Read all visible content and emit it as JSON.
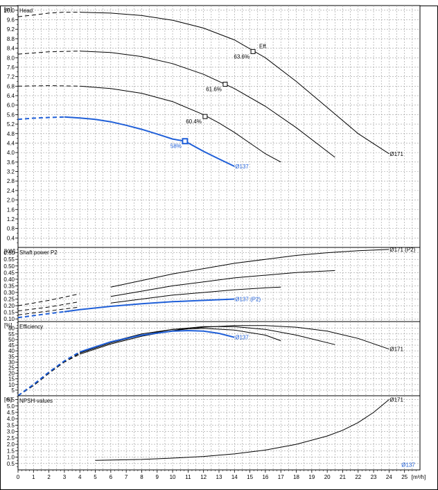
{
  "header": {
    "warning_text": ""
  },
  "chart_data": {
    "type": "line",
    "x_axis": {
      "min": 0,
      "max": 26,
      "ticks": [
        0,
        1,
        2,
        3,
        4,
        5,
        6,
        7,
        8,
        9,
        10,
        11,
        12,
        13,
        14,
        15,
        16,
        17,
        18,
        19,
        20,
        21,
        22,
        23,
        24,
        25
      ],
      "unit": "[m³/h]"
    },
    "accent_color": "#1f5fd8",
    "line_color": "#000000",
    "grid": true,
    "panels": [
      {
        "id": "head",
        "title": "Head",
        "unit": "[m]",
        "ylim": [
          0,
          10.2
        ],
        "yticks": [
          0.4,
          0.8,
          1.2,
          1.6,
          2.0,
          2.4,
          2.8,
          3.2,
          3.6,
          4.0,
          4.4,
          4.8,
          5.2,
          5.6,
          6.0,
          6.4,
          6.8,
          7.2,
          7.6,
          8.0,
          8.4,
          8.8,
          9.2,
          9.6,
          10.0
        ],
        "tick_decimals": 1,
        "series": [
          {
            "name": "Ø171",
            "color": "#000000",
            "dash_until_x": 4.0,
            "label_at": "end",
            "points": [
              [
                0,
                9.73
              ],
              [
                1,
                9.8
              ],
              [
                2,
                9.88
              ],
              [
                3,
                9.92
              ],
              [
                4,
                9.92
              ],
              [
                6,
                9.88
              ],
              [
                8,
                9.78
              ],
              [
                10,
                9.58
              ],
              [
                12,
                9.25
              ],
              [
                14,
                8.75
              ],
              [
                16,
                8.0
              ],
              [
                18,
                7.0
              ],
              [
                20,
                5.9
              ],
              [
                22,
                4.8
              ],
              [
                24,
                3.95
              ]
            ]
          },
          {
            "name": "",
            "color": "#000000",
            "dash_until_x": 4.0,
            "points": [
              [
                0,
                8.15
              ],
              [
                2,
                8.25
              ],
              [
                4,
                8.28
              ],
              [
                6,
                8.22
              ],
              [
                8,
                8.05
              ],
              [
                10,
                7.75
              ],
              [
                12,
                7.3
              ],
              [
                14,
                6.7
              ],
              [
                16,
                5.95
              ],
              [
                18,
                5.05
              ],
              [
                20.5,
                3.8
              ]
            ]
          },
          {
            "name": "",
            "color": "#000000",
            "dash_until_x": 4.0,
            "points": [
              [
                0,
                6.8
              ],
              [
                2,
                6.82
              ],
              [
                4,
                6.8
              ],
              [
                6,
                6.7
              ],
              [
                8,
                6.5
              ],
              [
                10,
                6.15
              ],
              [
                12,
                5.6
              ],
              [
                13,
                5.25
              ],
              [
                14,
                4.85
              ],
              [
                15,
                4.4
              ],
              [
                16,
                3.95
              ],
              [
                17,
                3.6
              ]
            ]
          },
          {
            "name": "Ø137",
            "color": "#1f5fd8",
            "dash_until_x": 3.0,
            "label_at": "end",
            "points": [
              [
                0,
                5.4
              ],
              [
                1,
                5.45
              ],
              [
                2,
                5.48
              ],
              [
                3,
                5.5
              ],
              [
                4,
                5.46
              ],
              [
                5,
                5.4
              ],
              [
                6,
                5.3
              ],
              [
                7,
                5.15
              ],
              [
                8,
                4.98
              ],
              [
                9,
                4.78
              ],
              [
                10,
                4.57
              ],
              [
                10.8,
                4.48
              ],
              [
                12,
                4.05
              ],
              [
                13,
                3.73
              ],
              [
                14,
                3.42
              ]
            ]
          }
        ],
        "markers": [
          {
            "x": 15.2,
            "y": 8.26,
            "label": "63.6%",
            "label_pos": "below-left",
            "color": "#000000"
          },
          {
            "x": 13.4,
            "y": 6.88,
            "label": "61.6%",
            "label_pos": "below-left",
            "color": "#000000"
          },
          {
            "x": 12.1,
            "y": 5.52,
            "label": "60.4%",
            "label_pos": "below-left",
            "color": "#000000"
          },
          {
            "x": 10.8,
            "y": 4.48,
            "label": "58%",
            "label_pos": "below-left",
            "color": "#1f5fd8"
          }
        ],
        "annotations": [
          {
            "text": "Eff.",
            "x": 15.6,
            "y": 8.4,
            "color": "#000000"
          }
        ]
      },
      {
        "id": "power",
        "title": "Shaft power P2",
        "unit": "[kW]",
        "ylim": [
          0.08,
          0.64
        ],
        "yticks": [
          0.1,
          0.15,
          0.2,
          0.25,
          0.3,
          0.35,
          0.4,
          0.45,
          0.5,
          0.55,
          0.6
        ],
        "tick_decimals": 2,
        "series": [
          {
            "name": "Ø171 (P2)",
            "color": "#000000",
            "dash_until_x": 5.0,
            "label_at": "end",
            "points": [
              [
                0,
                0.2
              ],
              [
                2,
                0.24
              ],
              [
                4,
                0.29
              ],
              [
                6,
                0.34
              ],
              [
                8,
                0.39
              ],
              [
                10,
                0.44
              ],
              [
                12,
                0.48
              ],
              [
                14,
                0.52
              ],
              [
                16,
                0.55
              ],
              [
                18,
                0.58
              ],
              [
                20,
                0.6
              ],
              [
                22,
                0.615
              ],
              [
                24,
                0.625
              ]
            ]
          },
          {
            "name": "",
            "color": "#000000",
            "dash_until_x": 5.0,
            "points": [
              [
                0,
                0.16
              ],
              [
                2,
                0.19
              ],
              [
                4,
                0.23
              ],
              [
                6,
                0.27
              ],
              [
                8,
                0.31
              ],
              [
                10,
                0.35
              ],
              [
                12,
                0.38
              ],
              [
                14,
                0.41
              ],
              [
                16,
                0.43
              ],
              [
                18,
                0.45
              ],
              [
                20.5,
                0.465
              ]
            ]
          },
          {
            "name": "",
            "color": "#000000",
            "dash_until_x": 5.0,
            "points": [
              [
                0,
                0.13
              ],
              [
                2,
                0.16
              ],
              [
                4,
                0.19
              ],
              [
                6,
                0.22
              ],
              [
                8,
                0.25
              ],
              [
                10,
                0.28
              ],
              [
                12,
                0.3
              ],
              [
                14,
                0.32
              ],
              [
                16,
                0.335
              ],
              [
                17,
                0.34
              ]
            ]
          },
          {
            "name": "Ø137 (P2)",
            "color": "#1f5fd8",
            "dash_until_x": 3.0,
            "label_at": "end",
            "points": [
              [
                0,
                0.11
              ],
              [
                1,
                0.125
              ],
              [
                2,
                0.14
              ],
              [
                3,
                0.155
              ],
              [
                4,
                0.17
              ],
              [
                6,
                0.195
              ],
              [
                8,
                0.215
              ],
              [
                10,
                0.23
              ],
              [
                12,
                0.24
              ],
              [
                14,
                0.25
              ]
            ]
          }
        ]
      },
      {
        "id": "efficiency",
        "title": "Efficiency",
        "unit": "[%]",
        "ylim": [
          0,
          66
        ],
        "yticks": [
          5,
          10,
          15,
          20,
          25,
          30,
          35,
          40,
          45,
          50,
          55,
          60
        ],
        "tick_decimals": 0,
        "series": [
          {
            "name": "Ø171",
            "color": "#000000",
            "dash_until_x": 4.0,
            "label_at": "end",
            "points": [
              [
                0,
                0
              ],
              [
                1,
                9
              ],
              [
                2,
                20
              ],
              [
                3,
                30
              ],
              [
                4,
                37
              ],
              [
                6,
                46
              ],
              [
                8,
                53
              ],
              [
                10,
                58
              ],
              [
                12,
                61
              ],
              [
                14,
                62.5
              ],
              [
                16,
                62.5
              ],
              [
                18,
                61
              ],
              [
                20,
                57.5
              ],
              [
                22,
                51
              ],
              [
                24,
                41.5
              ]
            ]
          },
          {
            "name": "",
            "color": "#000000",
            "dash_until_x": 4.0,
            "points": [
              [
                0,
                0
              ],
              [
                1,
                9
              ],
              [
                2,
                20
              ],
              [
                3,
                30
              ],
              [
                4,
                38
              ],
              [
                6,
                47
              ],
              [
                8,
                54
              ],
              [
                10,
                59
              ],
              [
                12,
                61.5
              ],
              [
                14,
                61.5
              ],
              [
                16,
                59
              ],
              [
                18,
                54
              ],
              [
                20.5,
                45.5
              ]
            ]
          },
          {
            "name": "",
            "color": "#000000",
            "dash_until_x": 4.0,
            "points": [
              [
                0,
                0
              ],
              [
                1,
                10
              ],
              [
                2,
                21
              ],
              [
                3,
                31
              ],
              [
                4,
                38.5
              ],
              [
                6,
                48
              ],
              [
                8,
                55
              ],
              [
                10,
                59
              ],
              [
                12,
                60
              ],
              [
                14,
                58.5
              ],
              [
                16,
                54
              ],
              [
                17,
                49
              ]
            ]
          },
          {
            "name": "Ø137",
            "color": "#1f5fd8",
            "dash_until_x": 4.0,
            "label_at": "end",
            "points": [
              [
                0,
                0
              ],
              [
                1,
                10
              ],
              [
                2,
                21
              ],
              [
                3,
                31
              ],
              [
                4,
                39
              ],
              [
                6,
                48
              ],
              [
                8,
                54
              ],
              [
                10,
                57.5
              ],
              [
                11,
                58
              ],
              [
                12,
                57.5
              ],
              [
                13,
                55.5
              ],
              [
                14,
                52
              ]
            ]
          }
        ]
      },
      {
        "id": "npsh",
        "title": "NPSH-values",
        "unit": "[m]",
        "ylim": [
          0,
          5.8
        ],
        "yticks": [
          0.5,
          1.0,
          1.5,
          2.0,
          2.5,
          3.0,
          3.5,
          4.0,
          4.5,
          5.0,
          5.5
        ],
        "tick_decimals": 1,
        "series": [
          {
            "name": "Ø171",
            "color": "#000000",
            "dash_until_x": null,
            "label_at": "end",
            "points": [
              [
                5,
                0.75
              ],
              [
                8,
                0.82
              ],
              [
                10,
                0.92
              ],
              [
                12,
                1.05
              ],
              [
                14,
                1.25
              ],
              [
                16,
                1.55
              ],
              [
                18,
                2.0
              ],
              [
                20,
                2.65
              ],
              [
                21,
                3.1
              ],
              [
                22,
                3.7
              ],
              [
                23,
                4.5
              ],
              [
                24,
                5.5
              ]
            ]
          }
        ],
        "annotations": [
          {
            "text": "Ø137",
            "x": 24.8,
            "y": 0.25,
            "color": "#1f5fd8"
          }
        ]
      }
    ]
  }
}
